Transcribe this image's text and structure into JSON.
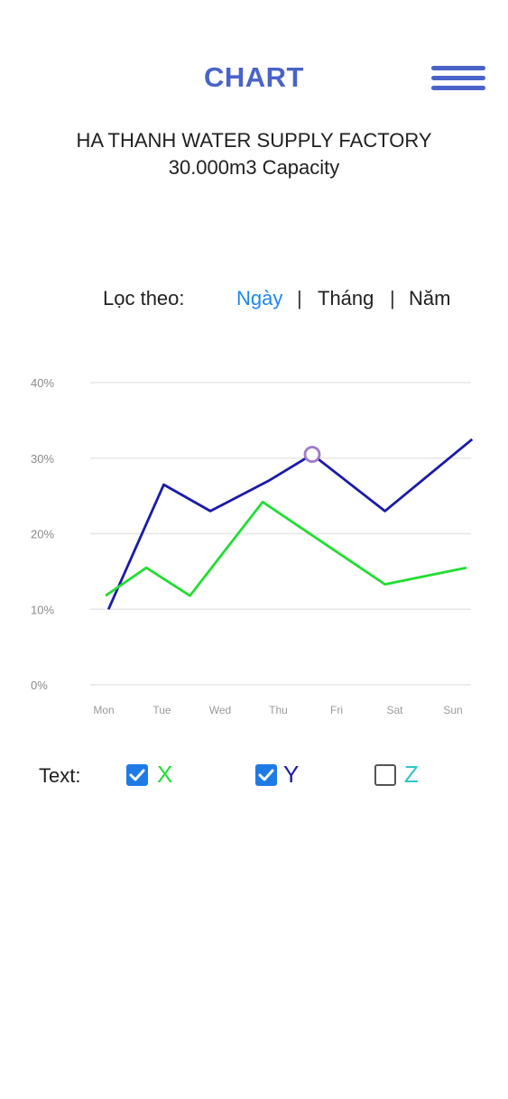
{
  "header": {
    "title": "CHART",
    "title_color": "#4a63c9",
    "menu_icon": "hamburger-menu-icon"
  },
  "subtitle": {
    "line1": "HA THANH WATER SUPPLY FACTORY",
    "line2": "30.000m3 Capacity"
  },
  "filter": {
    "label": "Lọc theo:",
    "options": [
      {
        "label": "Ngày",
        "active": true
      },
      {
        "label": "Tháng",
        "active": false
      },
      {
        "label": "Năm",
        "active": false
      }
    ],
    "separator": "|",
    "active_color": "#1e88e5"
  },
  "chart_data": {
    "type": "line",
    "x": [
      "Mon",
      "Tue",
      "Wed",
      "Thu",
      "Fri",
      "Sat",
      "Sun"
    ],
    "y_ticks": [
      "0%",
      "10%",
      "20%",
      "30%",
      "40%"
    ],
    "ylim": [
      0,
      40
    ],
    "grid": true,
    "series": [
      {
        "name": "Y",
        "color": "#1a1aa8",
        "points": [
          [
            0.05,
            10
          ],
          [
            1.0,
            26.5
          ],
          [
            1.8,
            23
          ],
          [
            2.8,
            27
          ],
          [
            3.55,
            30.5
          ],
          [
            4.8,
            23
          ],
          [
            6.3,
            32.5
          ]
        ]
      },
      {
        "name": "X",
        "color": "#22dd33",
        "points": [
          [
            0.0,
            11.8
          ],
          [
            0.7,
            15.5
          ],
          [
            1.45,
            11.8
          ],
          [
            2.7,
            24.2
          ],
          [
            4.8,
            13.3
          ],
          [
            6.2,
            15.5
          ]
        ]
      }
    ],
    "highlight": {
      "x": 3.55,
      "y": 30.5,
      "color": "#a07cc8"
    }
  },
  "legend": {
    "label": "Text:",
    "items": [
      {
        "name": "X",
        "checked": true,
        "color": "#22dd33"
      },
      {
        "name": "Y",
        "checked": true,
        "color": "#1a1aa8"
      },
      {
        "name": "Z",
        "checked": false,
        "color": "#2ec4c4"
      }
    ]
  }
}
